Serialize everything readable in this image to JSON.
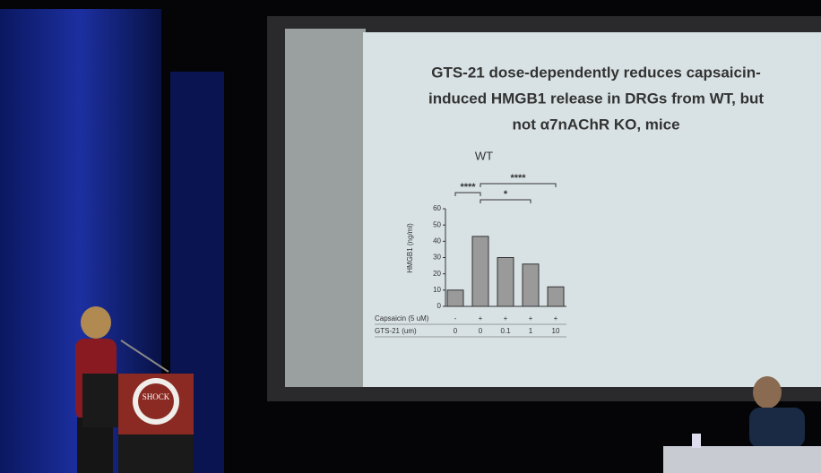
{
  "podium": {
    "logo_text": "SHOCK"
  },
  "chart_data": {
    "type": "bar",
    "title": "GTS-21 dose-dependently reduces capsaicin-induced HMGB1 release in DRGs from WT, but not α7nAChR KO, mice",
    "title_lines": [
      "GTS-21 dose-dependently reduces capsaicin-",
      "induced HMGB1 release in DRGs from WT, but",
      "not α7nAChR KO, mice"
    ],
    "subtitle": "WT",
    "ylabel": "HMGB1 (ng/ml)",
    "categories": [
      null,
      null,
      null,
      null,
      null
    ],
    "x_rows": [
      {
        "label": "Capsaicin (5 uM)",
        "values": [
          "-",
          "+",
          "+",
          "+",
          "+"
        ]
      },
      {
        "label": "GTS-21 (um)",
        "values": [
          "0",
          "0",
          "0.1",
          "1",
          "10"
        ]
      }
    ],
    "values": [
      10,
      43,
      30,
      26,
      12
    ],
    "color": "#9a9a9a",
    "ylim": [
      0,
      60
    ],
    "yticks": [
      0,
      10,
      20,
      30,
      40,
      50,
      60
    ],
    "annotations": [
      "****",
      "*",
      "****"
    ]
  }
}
